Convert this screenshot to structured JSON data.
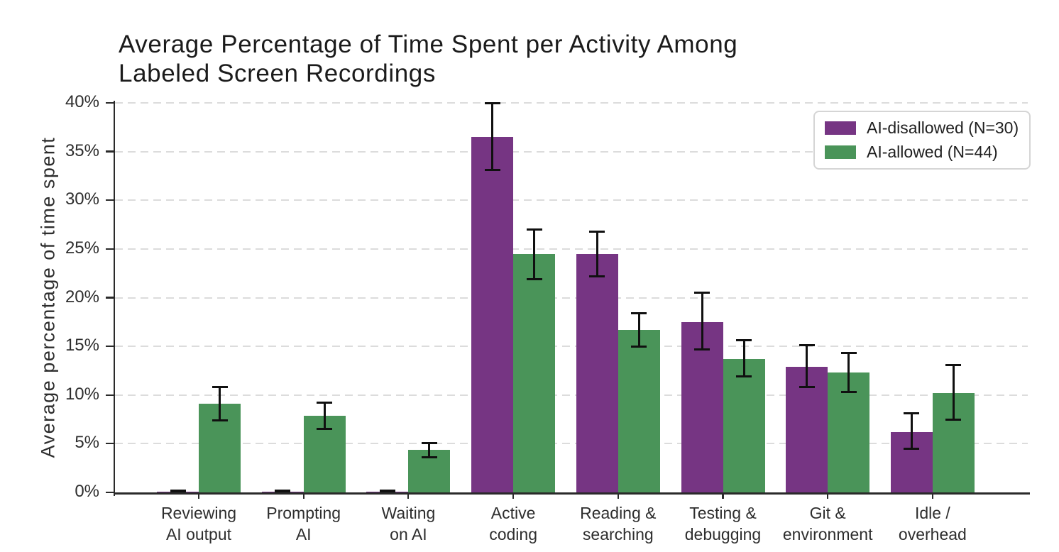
{
  "chart_data": {
    "type": "bar",
    "title": "Average Percentage of Time Spent per Activity Among Labeled Screen Recordings",
    "title_lines": [
      "Average Percentage of Time Spent per Activity Among",
      "Labeled Screen Recordings"
    ],
    "ylabel": "Average percentage of time spent",
    "xlabel": "",
    "ylim": [
      0,
      40
    ],
    "ytick_values": [
      0,
      5,
      10,
      15,
      20,
      25,
      30,
      35,
      40
    ],
    "ytick_labels": [
      "0%",
      "5%",
      "10%",
      "15%",
      "20%",
      "25%",
      "30%",
      "35%",
      "40%"
    ],
    "grid": "horizontal-dashed",
    "legend_position": "upper right",
    "categories": [
      "Reviewing AI output",
      "Prompting AI",
      "Waiting on AI",
      "Active coding",
      "Reading & searching",
      "Testing & debugging",
      "Git & environment",
      "Idle / overhead"
    ],
    "category_lines": [
      [
        "Reviewing",
        "AI output"
      ],
      [
        "Prompting",
        "AI"
      ],
      [
        "Waiting",
        "on AI"
      ],
      [
        "Active",
        "coding"
      ],
      [
        "Reading &",
        "searching"
      ],
      [
        "Testing &",
        "debugging"
      ],
      [
        "Git &",
        "environment"
      ],
      [
        "Idle /",
        "overhead"
      ]
    ],
    "series": [
      {
        "name": "AI-disallowed (N=30)",
        "color": "#763583",
        "values": [
          0.1,
          0.1,
          0.1,
          36.5,
          24.5,
          17.5,
          12.9,
          6.2
        ],
        "err_low": [
          0.0,
          0.0,
          0.0,
          33.1,
          22.2,
          14.7,
          10.8,
          4.5
        ],
        "err_high": [
          0.2,
          0.2,
          0.2,
          40.0,
          26.8,
          20.5,
          15.1,
          8.1
        ]
      },
      {
        "name": "AI-allowed (N=44)",
        "color": "#4a9459",
        "values": [
          9.1,
          7.9,
          4.4,
          24.5,
          16.7,
          13.7,
          12.3,
          10.2
        ],
        "err_low": [
          7.4,
          6.5,
          3.6,
          21.9,
          15.0,
          11.9,
          10.3,
          7.5
        ],
        "err_high": [
          10.8,
          9.2,
          5.1,
          27.0,
          18.4,
          15.6,
          14.3,
          13.1
        ]
      }
    ],
    "errorbar_color": "#101010",
    "gridline_color": "#dcdcdc",
    "axis_color": "#2a2a2a"
  }
}
